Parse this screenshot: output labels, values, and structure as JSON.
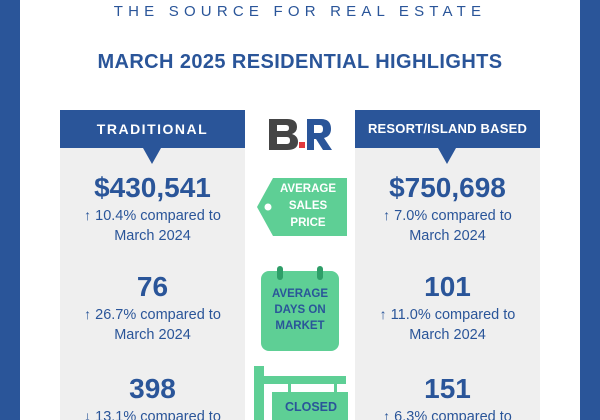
{
  "header": {
    "tagline": "THE SOURCE FOR REAL ESTATE",
    "title": "MARCH 2025 RESIDENTIAL HIGHLIGHTS"
  },
  "brand": {
    "logo_icon": "br-logo-icon"
  },
  "colors": {
    "primary": "#2a5599",
    "accent_green": "#5ecf95",
    "panel": "#efefef"
  },
  "columns": {
    "traditional": {
      "label": "TRADITIONAL",
      "stats": [
        {
          "value": "$430,541",
          "direction": "up",
          "change": "10.4% compared to",
          "period": "March 2024"
        },
        {
          "value": "76",
          "direction": "up",
          "change": "26.7% compared to",
          "period": "March 2024"
        },
        {
          "value": "398",
          "direction": "down",
          "change": "13.1% compared to",
          "period": ""
        }
      ]
    },
    "resort": {
      "label": "RESORT/ISLAND BASED",
      "stats": [
        {
          "value": "$750,698",
          "direction": "up",
          "change": "7.0% compared to",
          "period": "March 2024"
        },
        {
          "value": "101",
          "direction": "up",
          "change": "11.0% compared to",
          "period": "March 2024"
        },
        {
          "value": "151",
          "direction": "up",
          "change": "6.3% compared to",
          "period": ""
        }
      ]
    }
  },
  "metrics": {
    "sales_price": {
      "line1": "AVERAGE",
      "line2": "SALES",
      "line3": "PRICE",
      "icon": "price-tag-icon"
    },
    "days_on_market": {
      "line1": "AVERAGE",
      "line2": "DAYS ON",
      "line3": "MARKET",
      "icon": "calendar-icon"
    },
    "closed": {
      "line1": "CLOSED",
      "icon": "sign-post-icon"
    }
  },
  "glyphs": {
    "up": "↑",
    "down": "↓"
  }
}
